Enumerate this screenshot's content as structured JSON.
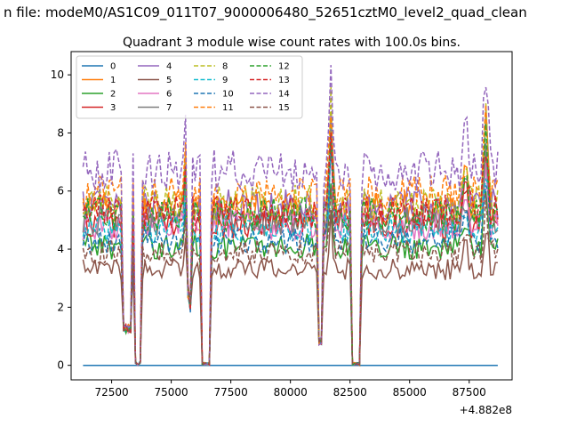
{
  "chart_data": {
    "type": "line",
    "suptitle": "n file: modeM0/AS1C09_011T07_9000006480_52651cztM0_level2_quad_clean",
    "title": "Quadrant 3 module wise count rates with 100.0s bins.",
    "xlabel": "",
    "ylabel": "",
    "x_offset_label": "+4.882e8",
    "xlim": [
      70800,
      89300
    ],
    "ylim": [
      -0.5,
      10.8
    ],
    "x_ticks": [
      72500,
      75000,
      77500,
      80000,
      82500,
      85000,
      87500
    ],
    "y_ticks": [
      0,
      2,
      4,
      6,
      8,
      10
    ],
    "x_tick_labels": [
      "72500",
      "75000",
      "77500",
      "80000",
      "82500",
      "85000",
      "87500"
    ],
    "y_tick_labels": [
      "0",
      "2",
      "4",
      "6",
      "8",
      "10"
    ],
    "grid": false,
    "legend_position": "top-left",
    "legend_columns": 4,
    "x_start": 71300,
    "x_end": 88700,
    "bin_seconds": 100,
    "gaps": [
      [
        72950,
        73300,
        1.1
      ],
      [
        73450,
        73750,
        0.1
      ],
      [
        75700,
        75850,
        1.8
      ],
      [
        76250,
        76650,
        0.0
      ],
      [
        81200,
        81350,
        0.7
      ],
      [
        82600,
        82900,
        0.0
      ]
    ],
    "spikes": [
      [
        73600,
        150,
        -0.95
      ],
      [
        75640,
        120,
        0.55
      ],
      [
        81700,
        150,
        0.6
      ],
      [
        88200,
        200,
        0.5
      ],
      [
        87350,
        200,
        0.25
      ]
    ],
    "series": [
      {
        "name": "0",
        "style": "solid",
        "color": "#1f77b4",
        "level": 0.0
      },
      {
        "name": "1",
        "style": "solid",
        "color": "#ff7f0e",
        "level": 5.4
      },
      {
        "name": "2",
        "style": "solid",
        "color": "#2ca02c",
        "level": 4.1
      },
      {
        "name": "3",
        "style": "solid",
        "color": "#d62728",
        "level": 4.9
      },
      {
        "name": "4",
        "style": "solid",
        "color": "#9467bd",
        "level": 5.5
      },
      {
        "name": "5",
        "style": "solid",
        "color": "#8c564b",
        "level": 3.3
      },
      {
        "name": "6",
        "style": "solid",
        "color": "#e377c2",
        "level": 4.8
      },
      {
        "name": "7",
        "style": "solid",
        "color": "#7f7f7f",
        "level": 5.0
      },
      {
        "name": "8",
        "style": "dashed",
        "color": "#bcbd22",
        "level": 5.6
      },
      {
        "name": "9",
        "style": "dashed",
        "color": "#17becf",
        "level": 4.7
      },
      {
        "name": "10",
        "style": "dashed",
        "color": "#1f77b4",
        "level": 4.3
      },
      {
        "name": "11",
        "style": "dashed",
        "color": "#ff7f0e",
        "level": 5.9
      },
      {
        "name": "12",
        "style": "dashed",
        "color": "#2ca02c",
        "level": 5.2
      },
      {
        "name": "13",
        "style": "dashed",
        "color": "#d62728",
        "level": 5.3
      },
      {
        "name": "14",
        "style": "dashed",
        "color": "#9467bd",
        "level": 6.7
      },
      {
        "name": "15",
        "style": "dashed",
        "color": "#8c564b",
        "level": 3.9
      }
    ]
  }
}
